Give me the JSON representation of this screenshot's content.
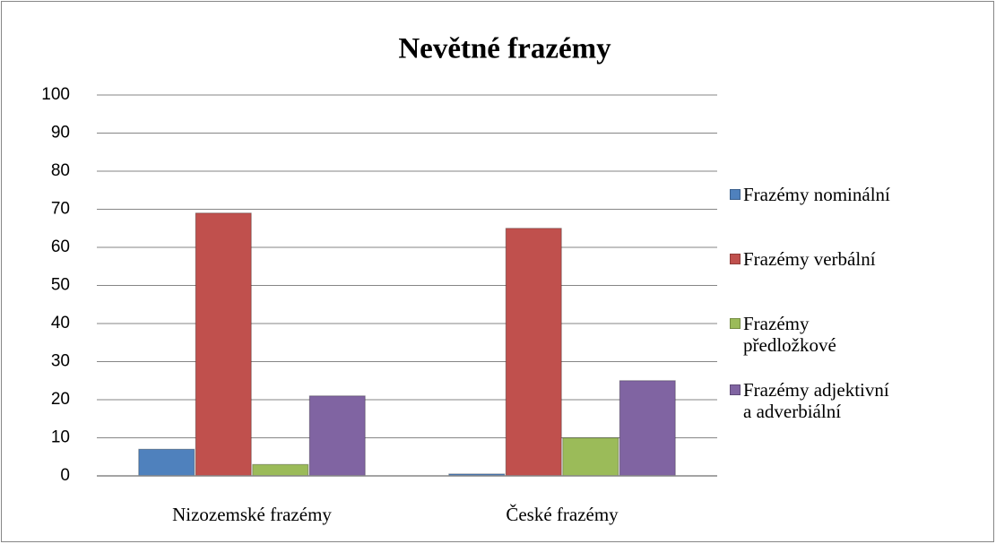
{
  "chart_data": {
    "type": "bar",
    "title": "Nevětné frazémy",
    "categories": [
      "Nizozemské frazémy",
      "České frazémy"
    ],
    "series": [
      {
        "name": "Frazémy nominální",
        "color": "#4f81bd",
        "values": [
          7,
          0.5
        ]
      },
      {
        "name": "Frazémy verbální",
        "color": "#c0504d",
        "values": [
          69,
          65
        ]
      },
      {
        "name": "Frazémy předložkové",
        "color": "#9bbb59",
        "values": [
          3,
          10
        ]
      },
      {
        "name": "Frazémy adjektivní a adverbiální",
        "color": "#8064a2",
        "values": [
          21,
          25
        ]
      }
    ],
    "ylim": [
      0,
      100
    ],
    "yticks": [
      0,
      10,
      20,
      30,
      40,
      50,
      60,
      70,
      80,
      90,
      100
    ],
    "grid": true,
    "legend": "right"
  }
}
